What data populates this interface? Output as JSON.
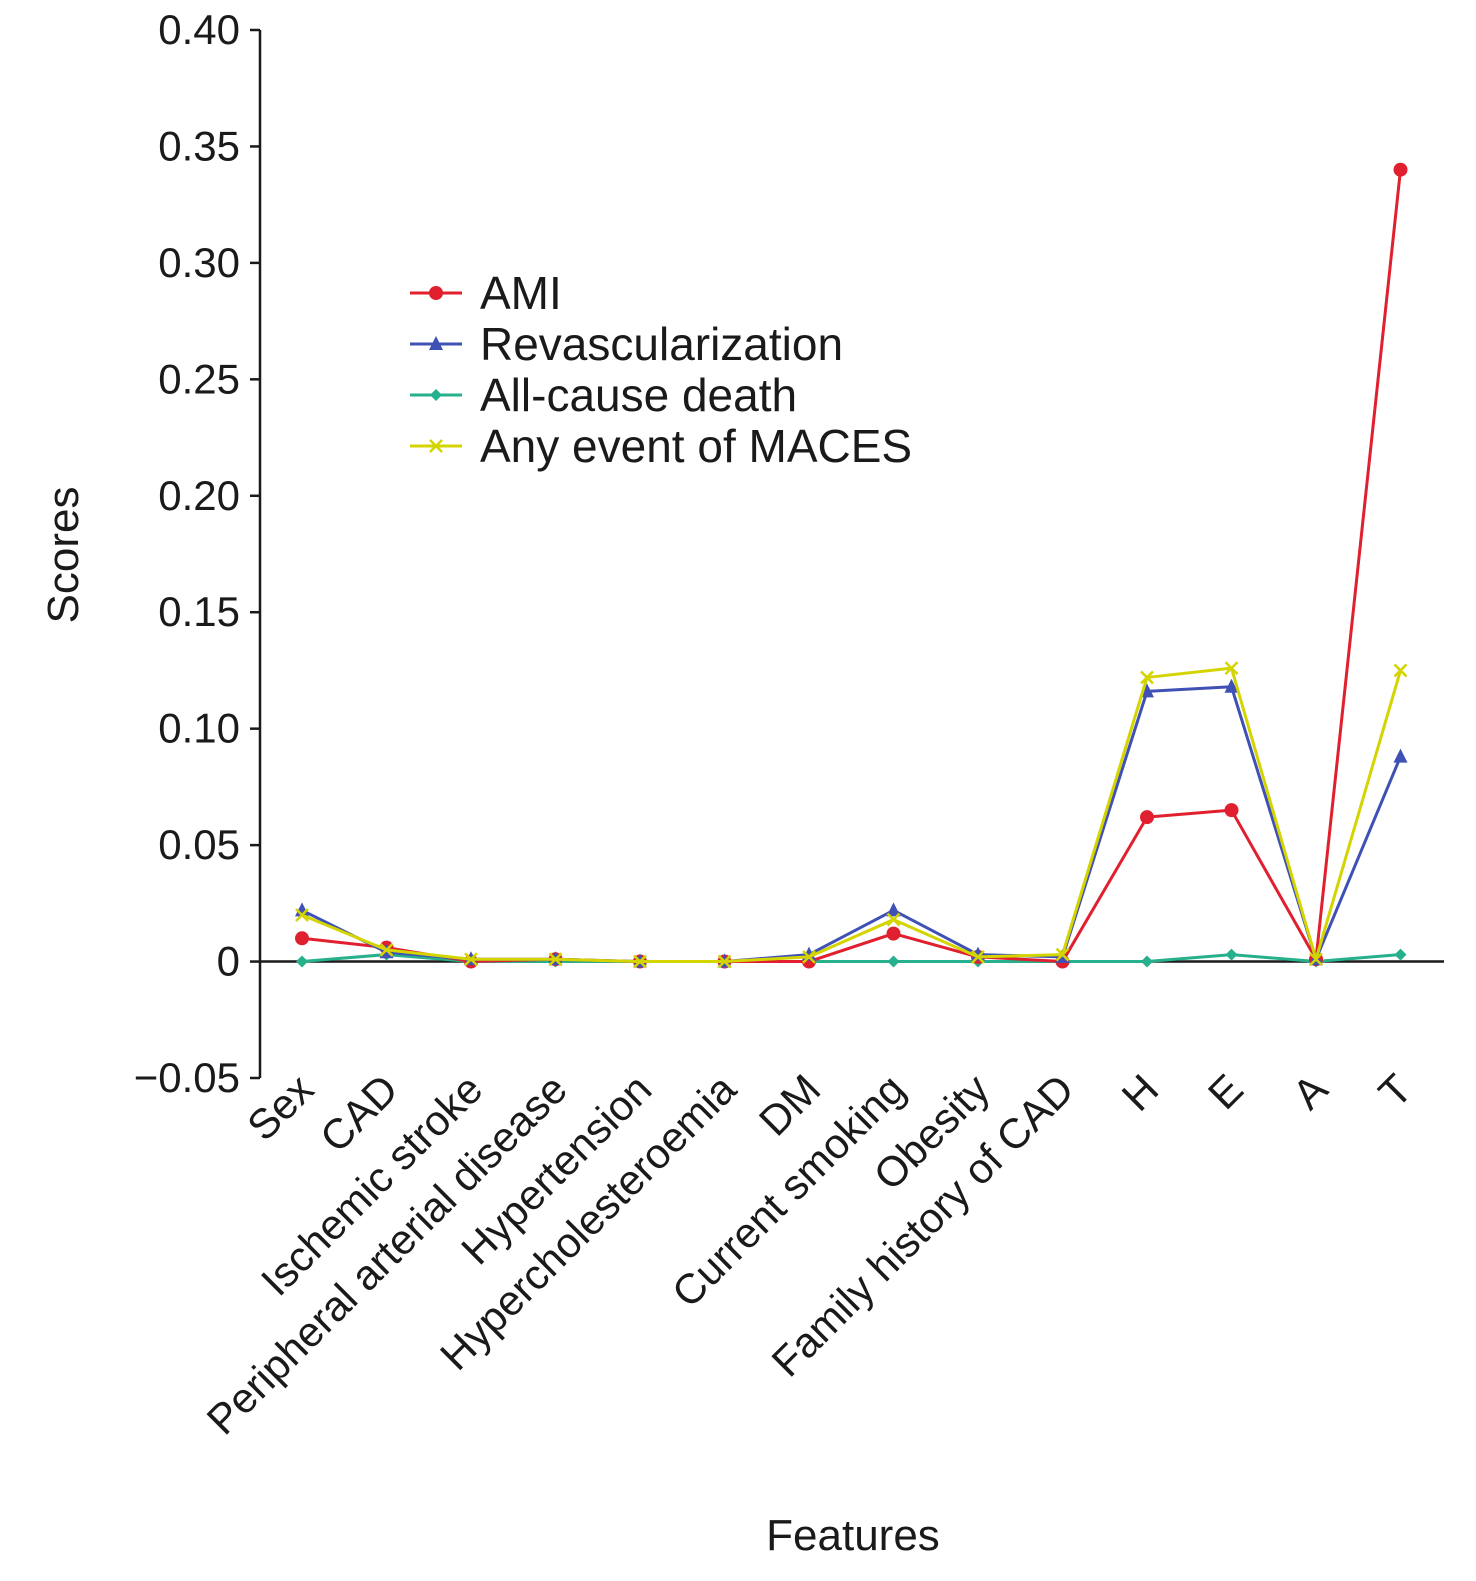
{
  "chart_data": {
    "type": "line",
    "title": "",
    "xlabel": "Features",
    "ylabel": "Scores",
    "ylim": [
      -0.05,
      0.4
    ],
    "yticks": [
      -0.05,
      0,
      0.05,
      0.1,
      0.15,
      0.2,
      0.25,
      0.3,
      0.35,
      0.4
    ],
    "ytick_labels": [
      "−0.05",
      "0",
      "0.05",
      "0.10",
      "0.15",
      "0.20",
      "0.25",
      "0.30",
      "0.35",
      "0.40"
    ],
    "categories": [
      "Sex",
      "CAD",
      "Ischemic stroke",
      "Peripheral arterial disease",
      "Hypertension",
      "Hypercholesteroemia",
      "DM",
      "Current smoking",
      "Obesity",
      "Family history of CAD",
      "H",
      "E",
      "A",
      "T"
    ],
    "grid": false,
    "legend_position": "upper-left",
    "series": [
      {
        "name": "AMI",
        "color": "#e0202e",
        "marker": "circle",
        "values": [
          0.01,
          0.006,
          0.0,
          0.001,
          0.0,
          0.0,
          0.0,
          0.012,
          0.002,
          0.0,
          0.062,
          0.065,
          0.001,
          0.34
        ]
      },
      {
        "name": "Revascularization",
        "color": "#3f51b5",
        "marker": "triangle",
        "values": [
          0.022,
          0.004,
          0.001,
          0.001,
          0.0,
          0.0,
          0.003,
          0.022,
          0.003,
          0.002,
          0.116,
          0.118,
          0.001,
          0.088
        ]
      },
      {
        "name": "All-cause death",
        "color": "#26b08c",
        "marker": "diamond",
        "values": [
          0.0,
          0.003,
          0.0,
          0.0,
          0.0,
          0.0,
          0.0,
          0.0,
          0.0,
          0.0,
          0.0,
          0.003,
          0.0,
          0.003
        ]
      },
      {
        "name": "Any event of MACES",
        "color": "#d4d400",
        "marker": "x",
        "values": [
          0.02,
          0.005,
          0.001,
          0.001,
          0.0,
          0.0,
          0.002,
          0.018,
          0.002,
          0.003,
          0.122,
          0.126,
          0.001,
          0.125
        ]
      }
    ]
  }
}
